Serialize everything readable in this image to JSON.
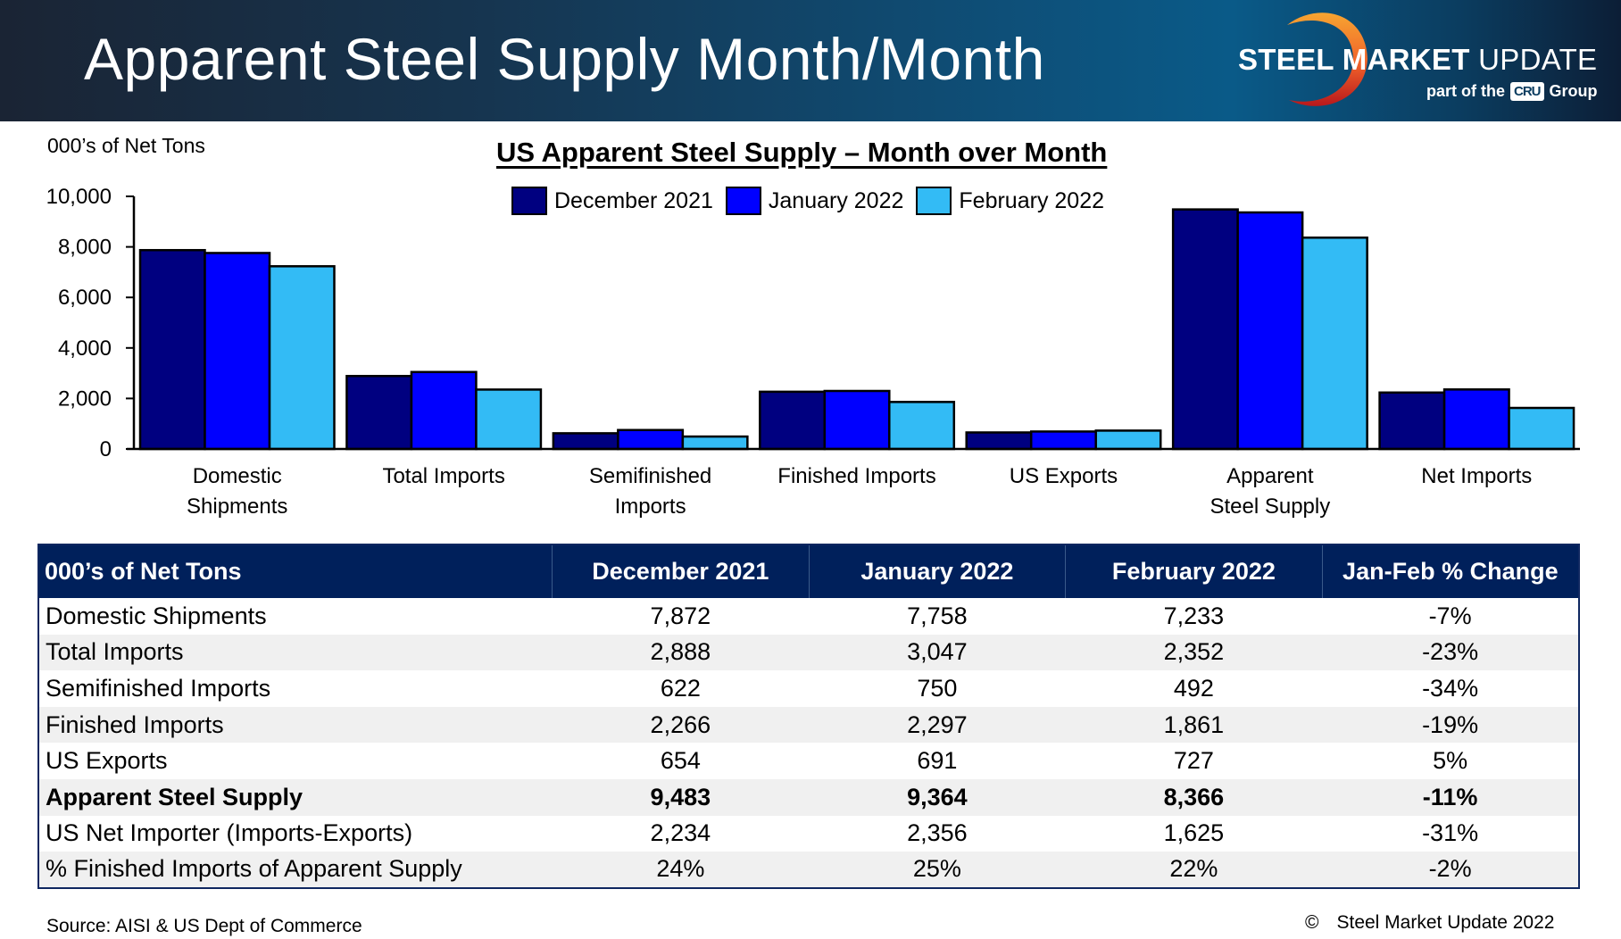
{
  "header": {
    "title": "Apparent Steel Supply Month/Month",
    "logo_bold": "STEEL MARKET",
    "logo_light": " UPDATE",
    "logo_sub_prefix": "part of the",
    "logo_sub_badge": "CRU",
    "logo_sub_suffix": "Group"
  },
  "colors": {
    "dec2021": "#000080",
    "jan2022": "#0000ff",
    "feb2022": "#33bbf5",
    "table_header_bg": "#00205b"
  },
  "chart_data": {
    "type": "bar",
    "title": "US Apparent Steel Supply – Month over Month",
    "ylabel": "000’s of Net Tons",
    "xlabel": "",
    "ylim": [
      0,
      10000
    ],
    "yticks": [
      0,
      2000,
      4000,
      6000,
      8000,
      10000
    ],
    "ytick_labels": [
      "0",
      "2,000",
      "4,000",
      "6,000",
      "8,000",
      "10,000"
    ],
    "grid": false,
    "legend_position": "top-center",
    "categories": [
      [
        "Domestic",
        "Shipments"
      ],
      [
        "Total Imports"
      ],
      [
        "Semifinished",
        "Imports"
      ],
      [
        "Finished Imports"
      ],
      [
        "US Exports"
      ],
      [
        "Apparent",
        "Steel Supply"
      ],
      [
        "Net Imports"
      ]
    ],
    "series": [
      {
        "name": "December 2021",
        "color": "#000080",
        "values": [
          7872,
          2888,
          622,
          2266,
          654,
          9483,
          2234
        ]
      },
      {
        "name": "January 2022",
        "color": "#0000ff",
        "values": [
          7758,
          3047,
          750,
          2297,
          691,
          9364,
          2356
        ]
      },
      {
        "name": "February 2022",
        "color": "#33bbf5",
        "values": [
          7233,
          2352,
          492,
          1861,
          727,
          8366,
          1625
        ]
      }
    ]
  },
  "table": {
    "headers": [
      "000’s of Net Tons",
      "December 2021",
      "January 2022",
      "February 2022",
      "Jan-Feb % Change"
    ],
    "rows": [
      {
        "label": "Domestic Shipments",
        "dec": "7,872",
        "jan": "7,758",
        "feb": "7,233",
        "chg": "-7%",
        "bold": false
      },
      {
        "label": "Total Imports",
        "dec": "2,888",
        "jan": "3,047",
        "feb": "2,352",
        "chg": "-23%",
        "bold": false
      },
      {
        "label": "Semifinished Imports",
        "dec": "622",
        "jan": "750",
        "feb": "492",
        "chg": "-34%",
        "bold": false
      },
      {
        "label": "Finished Imports",
        "dec": "2,266",
        "jan": "2,297",
        "feb": "1,861",
        "chg": "-19%",
        "bold": false
      },
      {
        "label": "US Exports",
        "dec": "654",
        "jan": "691",
        "feb": "727",
        "chg": "5%",
        "bold": false
      },
      {
        "label": "Apparent Steel Supply",
        "dec": "9,483",
        "jan": "9,364",
        "feb": "8,366",
        "chg": "-11%",
        "bold": true
      },
      {
        "label": "US Net Importer (Imports-Exports)",
        "dec": "2,234",
        "jan": "2,356",
        "feb": "1,625",
        "chg": "-31%",
        "bold": false
      },
      {
        "label": "% Finished Imports of Apparent Supply",
        "dec": "24%",
        "jan": "25%",
        "feb": "22%",
        "chg": "-2%",
        "bold": false
      }
    ]
  },
  "footer": {
    "source": "Source:  AISI & US Dept of Commerce",
    "copyright_symbol": "©",
    "copyright": "Steel Market Update 2022"
  }
}
